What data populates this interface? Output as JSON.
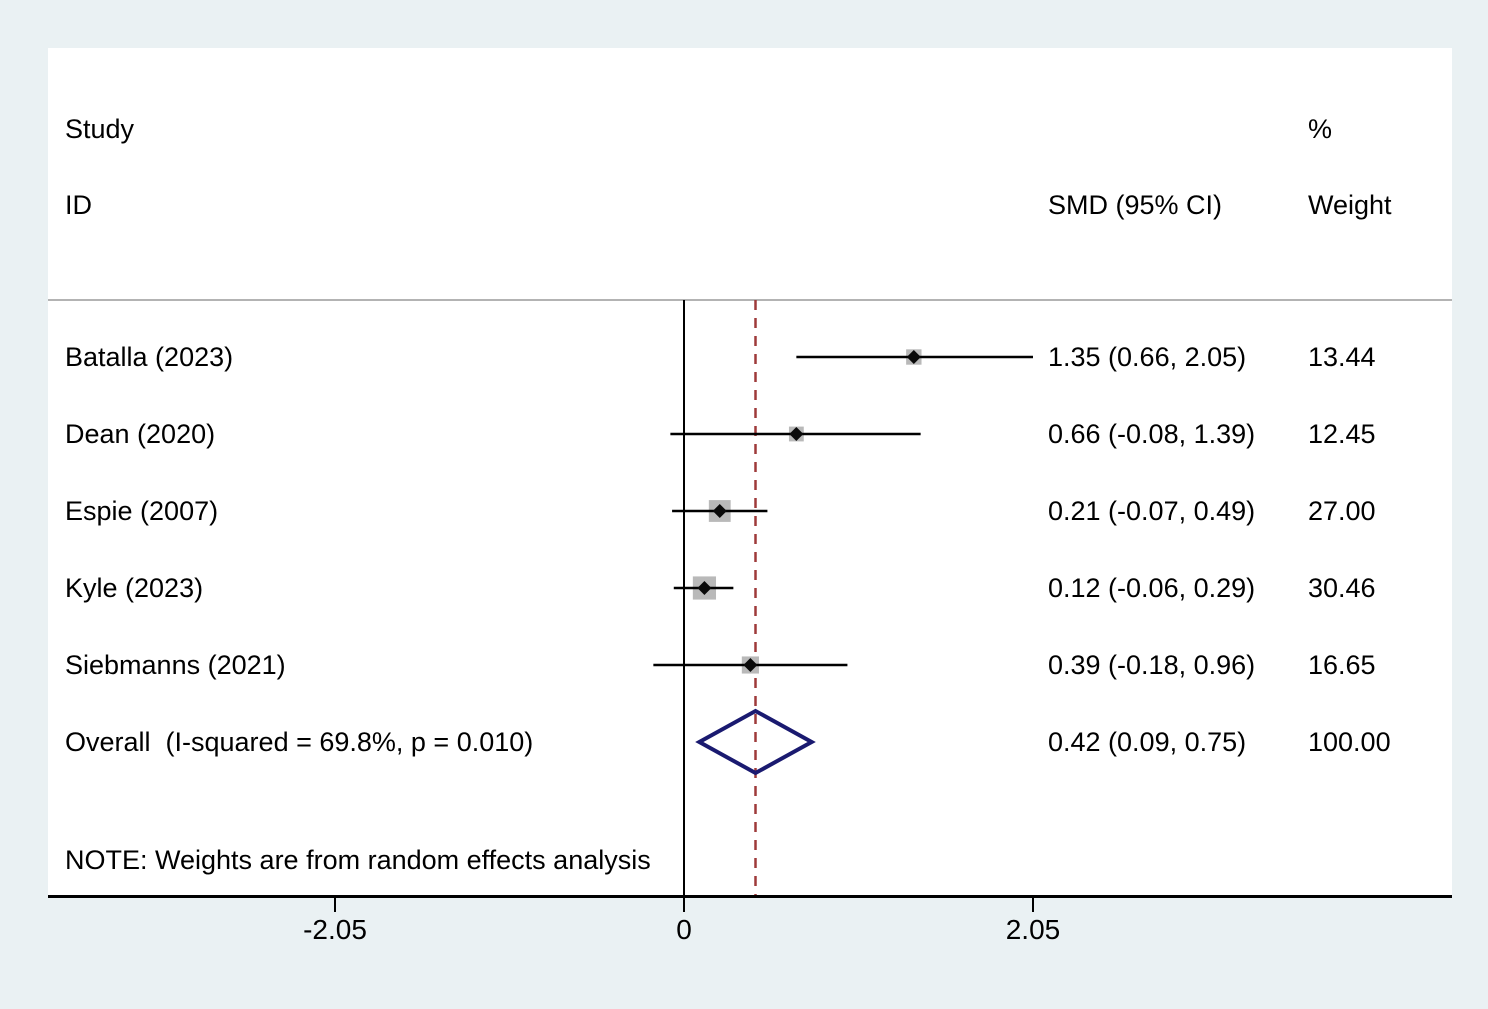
{
  "header": {
    "study": "Study",
    "id": "ID",
    "smd_ci": "SMD (95% CI)",
    "percent": "%",
    "weight": "Weight"
  },
  "note": "NOTE: Weights are from random effects analysis",
  "colors": {
    "page_background": "#eaf1f3",
    "plot_background": "#ffffff",
    "axis": "#000000",
    "separator": "#b3b3b3",
    "ref_line": "#9e3a3a",
    "weight_box": "#b9b9b9",
    "marker": "#0a0a0a",
    "diamond": "#1a1a70"
  },
  "chart_data": {
    "type": "forest",
    "effect_measure": "SMD",
    "null_line_value": 0,
    "overall_line_value": 0.42,
    "x_axis": {
      "ticks": [
        {
          "value": -2.05,
          "label": "-2.05"
        },
        {
          "value": 0,
          "label": "0"
        },
        {
          "value": 2.05,
          "label": "2.05"
        }
      ]
    },
    "studies": [
      {
        "id": "Batalla (2023)",
        "smd": 1.35,
        "ci_low": 0.66,
        "ci_high": 2.05,
        "smd_ci_label": "1.35 (0.66, 2.05)",
        "weight": 13.44,
        "weight_label": "13.44"
      },
      {
        "id": "Dean (2020)",
        "smd": 0.66,
        "ci_low": -0.08,
        "ci_high": 1.39,
        "smd_ci_label": "0.66 (-0.08, 1.39)",
        "weight": 12.45,
        "weight_label": "12.45"
      },
      {
        "id": "Espie (2007)",
        "smd": 0.21,
        "ci_low": -0.07,
        "ci_high": 0.49,
        "smd_ci_label": "0.21 (-0.07, 0.49)",
        "weight": 27.0,
        "weight_label": "27.00"
      },
      {
        "id": "Kyle (2023)",
        "smd": 0.12,
        "ci_low": -0.06,
        "ci_high": 0.29,
        "smd_ci_label": "0.12 (-0.06, 0.29)",
        "weight": 30.46,
        "weight_label": "30.46"
      },
      {
        "id": "Siebmanns (2021)",
        "smd": 0.39,
        "ci_low": -0.18,
        "ci_high": 0.96,
        "smd_ci_label": "0.39 (-0.18, 0.96)",
        "weight": 16.65,
        "weight_label": "16.65"
      }
    ],
    "overall": {
      "id": "Overall  (I-squared = 69.8%, p = 0.010)",
      "smd": 0.42,
      "ci_low": 0.09,
      "ci_high": 0.75,
      "smd_ci_label": "0.42 (0.09, 0.75)",
      "weight_label": "100.00"
    }
  }
}
